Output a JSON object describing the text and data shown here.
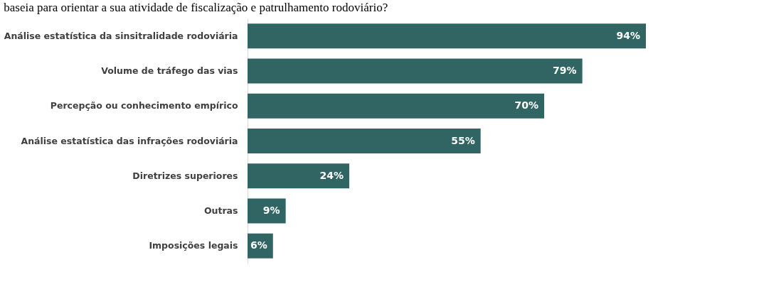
{
  "chart_data": {
    "type": "bar",
    "orientation": "horizontal",
    "title": "baseia para orientar a sua atividade de fiscalização e patrulhamento rodoviário?",
    "categories": [
      "Análise estatística da sinsitralidade rodoviária",
      "Volume de tráfego das vias",
      "Percepção ou conhecimento empírico",
      "Análise estatística das infrações rodoviária",
      "Diretrizes superiores",
      "Outras",
      "Imposições legais"
    ],
    "values": [
      94,
      79,
      70,
      55,
      24,
      9,
      6
    ],
    "value_labels": [
      "94%",
      "79%",
      "70%",
      "55%",
      "24%",
      "9%",
      "6%"
    ],
    "color": "#316563"
  }
}
